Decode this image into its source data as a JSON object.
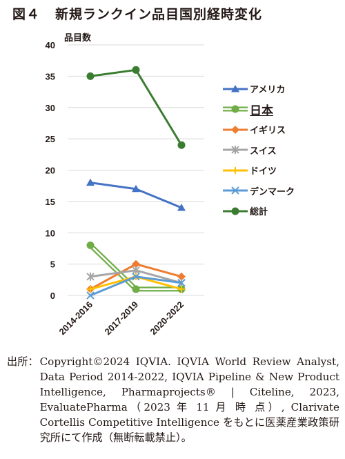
{
  "figure": {
    "number": "図４",
    "title": "新規ランクイン品目国別経時変化"
  },
  "source": {
    "label": "出所：",
    "text": "Copyright©2024 IQVIA. IQVIA World Review Analyst, Data Period 2014-2022, IQVIA Pipeline & New Product Intelligence, Pharmaprojects® | Citeline, 2023, EvaluatePharma（2023 年 11 月 時 点）, Clarivate Cortellis Competitive Intelligence をもとに医薬産業政策研究所にて作成（無断転載禁止）。"
  },
  "chart_data": {
    "type": "line",
    "title": "",
    "xlabel": "",
    "ylabel": "品目数",
    "ylim": [
      0,
      40
    ],
    "ytick_step": 5,
    "grid": "horizontal",
    "legend_position": "right",
    "categories": [
      "2014-2016",
      "2017-2019",
      "2020-2022"
    ],
    "series": [
      {
        "name": "アメリカ",
        "values": [
          18,
          17,
          14
        ],
        "color": "#4472c4",
        "marker": "triangle",
        "style": "single"
      },
      {
        "name": "日本",
        "values": [
          8,
          1,
          1
        ],
        "color": "#70ad47",
        "marker": "circle",
        "style": "double"
      },
      {
        "name": "イギリス",
        "values": [
          1,
          5,
          3
        ],
        "color": "#ed7d31",
        "marker": "diamond",
        "style": "single"
      },
      {
        "name": "スイス",
        "values": [
          3,
          4,
          2
        ],
        "color": "#a5a5a5",
        "marker": "asterisk",
        "style": "single"
      },
      {
        "name": "ドイツ",
        "values": [
          1,
          3,
          1
        ],
        "color": "#ffc000",
        "marker": "plus",
        "style": "single"
      },
      {
        "name": "デンマーク",
        "values": [
          0,
          3,
          2
        ],
        "color": "#5b9bd5",
        "marker": "x",
        "style": "single"
      },
      {
        "name": "総計",
        "values": [
          35,
          36,
          24
        ],
        "color": "#3a7d30",
        "marker": "circle",
        "style": "single"
      }
    ]
  }
}
